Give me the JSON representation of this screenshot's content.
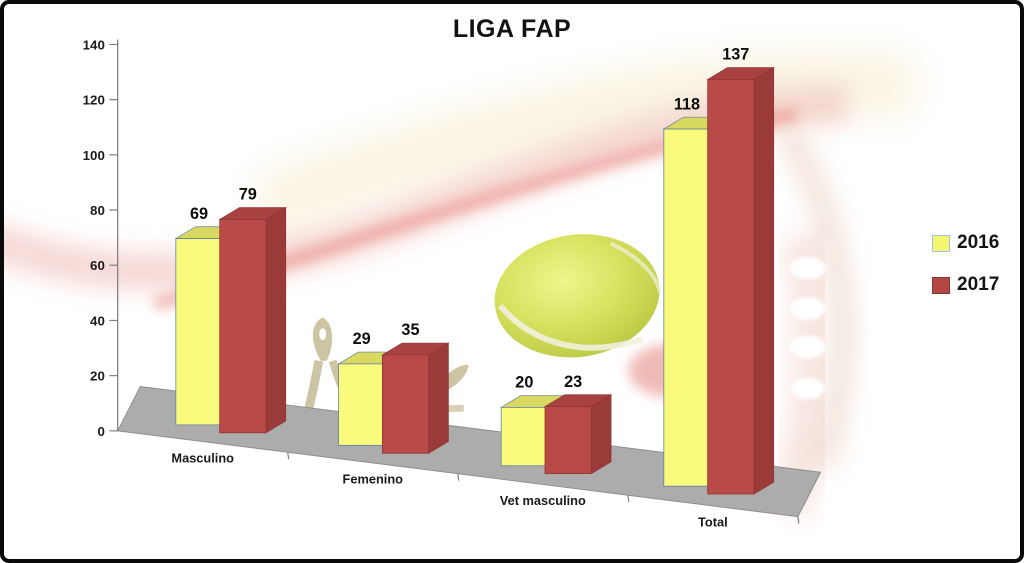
{
  "chart_data": {
    "type": "bar",
    "variant": "3d-clustered-column",
    "title": "LIGA FAP",
    "categories": [
      "Masculino",
      "Femenino",
      "Vet masculino",
      "Total"
    ],
    "series": [
      {
        "name": "2016",
        "values": [
          69,
          29,
          20,
          118
        ]
      },
      {
        "name": "2017",
        "values": [
          79,
          35,
          23,
          137
        ]
      }
    ],
    "xlabel": "",
    "ylabel": "",
    "ylim": [
      0,
      140
    ],
    "yticks": [
      0,
      20,
      40,
      60,
      80,
      100,
      120,
      140
    ],
    "grid": false,
    "legend_position": "right",
    "data_labels": true
  },
  "colors": {
    "series": [
      {
        "name": "2016",
        "front": "#FAFA7D",
        "top": "#D9D860",
        "side": "#CFCF58",
        "outline": "#5E80A0",
        "legend_fill": "#F5F76F",
        "legend_border": "#9DC3E6"
      },
      {
        "name": "2017",
        "front": "#BA4A48",
        "top": "#A84141",
        "side": "#9B3B39",
        "outline": "#8E3533",
        "legend_fill": "#B54743",
        "legend_border": "#843431"
      }
    ],
    "floor": "#ACACAC",
    "floor_edge": "#8E8E8E",
    "axis": "#808080",
    "text": "#1A1A1A",
    "background": "#FFFFFF",
    "frame_border": "#0A0A0A",
    "decor": {
      "tennis_ball": "#D6E25F",
      "swoosh_red": "#E87F78",
      "glow_yellow": "#F6EDCF",
      "doodle_olive": "#C2BC95"
    }
  }
}
